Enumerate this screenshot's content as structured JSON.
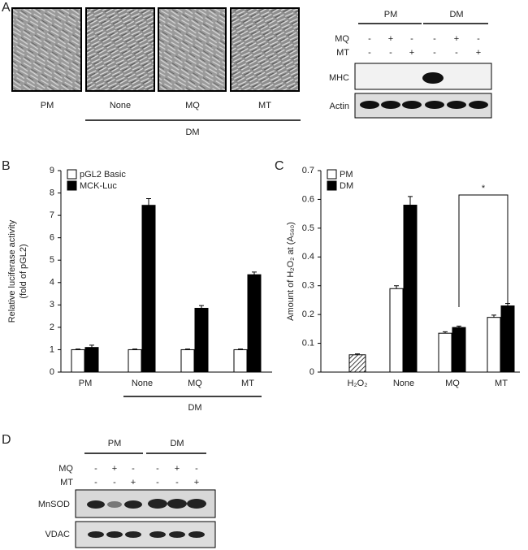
{
  "panel_letters": [
    "A",
    "B",
    "C",
    "D"
  ],
  "panel_a": {
    "image_labels": [
      "PM",
      "None",
      "MQ",
      "MT"
    ],
    "group_label": "DM",
    "blot": {
      "groups": [
        "PM",
        "DM"
      ],
      "rows": [
        {
          "label": "MQ",
          "signs": [
            "-",
            "+",
            "-",
            "-",
            "+",
            "-"
          ]
        },
        {
          "label": "MT",
          "signs": [
            "-",
            "-",
            "+",
            "-",
            "-",
            "+"
          ]
        }
      ],
      "bands": [
        "MHC",
        "Actin"
      ]
    }
  },
  "chart_data": [
    {
      "type": "bar",
      "ylabel": [
        "Relative luciferase activity",
        "(fold of pGL2)"
      ],
      "categories": [
        "PM",
        "None",
        "MQ",
        "MT"
      ],
      "series": [
        {
          "name": "pGL2 Basic",
          "color": "#ffffff",
          "values": [
            1,
            1,
            1,
            1
          ],
          "errors": [
            0.03,
            0.03,
            0.03,
            0.03
          ]
        },
        {
          "name": "MCK-Luc",
          "color": "#000000",
          "values": [
            1.1,
            7.45,
            2.85,
            4.35
          ],
          "errors": [
            0.1,
            0.3,
            0.12,
            0.12
          ]
        }
      ],
      "group_label": "DM",
      "ylim": [
        0,
        9
      ],
      "yticks": [
        0,
        1,
        2,
        3,
        4,
        5,
        6,
        7,
        8,
        9
      ],
      "legend": "top-left"
    },
    {
      "type": "bar",
      "ylabel": [
        "Amount of H₂O₂ at (A₅₆₀)"
      ],
      "categories": [
        "H₂O₂",
        "None",
        "MQ",
        "MT"
      ],
      "series": [
        {
          "name": "PM",
          "color": "#ffffff",
          "values": [
            null,
            0.29,
            0.135,
            0.19
          ],
          "errors": [
            null,
            0.01,
            0.005,
            0.008
          ]
        },
        {
          "name": "DM",
          "color": "#000000",
          "values": [
            null,
            0.58,
            0.155,
            0.23
          ],
          "errors": [
            null,
            0.03,
            0.005,
            0.008
          ]
        }
      ],
      "reference_bar": {
        "value": 0.06,
        "error": 0.003
      },
      "annotations": [
        {
          "text": "*"
        }
      ],
      "ylim": [
        0,
        0.7
      ],
      "yticks": [
        0,
        0.1,
        0.2,
        0.3,
        0.4,
        0.5,
        0.6,
        0.7
      ],
      "legend": "top-left"
    }
  ],
  "panel_d": {
    "blot": {
      "groups": [
        "PM",
        "DM"
      ],
      "rows": [
        {
          "label": "MQ",
          "signs": [
            "-",
            "+",
            "-",
            "-",
            "+",
            "-"
          ]
        },
        {
          "label": "MT",
          "signs": [
            "-",
            "-",
            "+",
            "-",
            "-",
            "+"
          ]
        }
      ],
      "bands": [
        "MnSOD",
        "VDAC"
      ]
    }
  }
}
